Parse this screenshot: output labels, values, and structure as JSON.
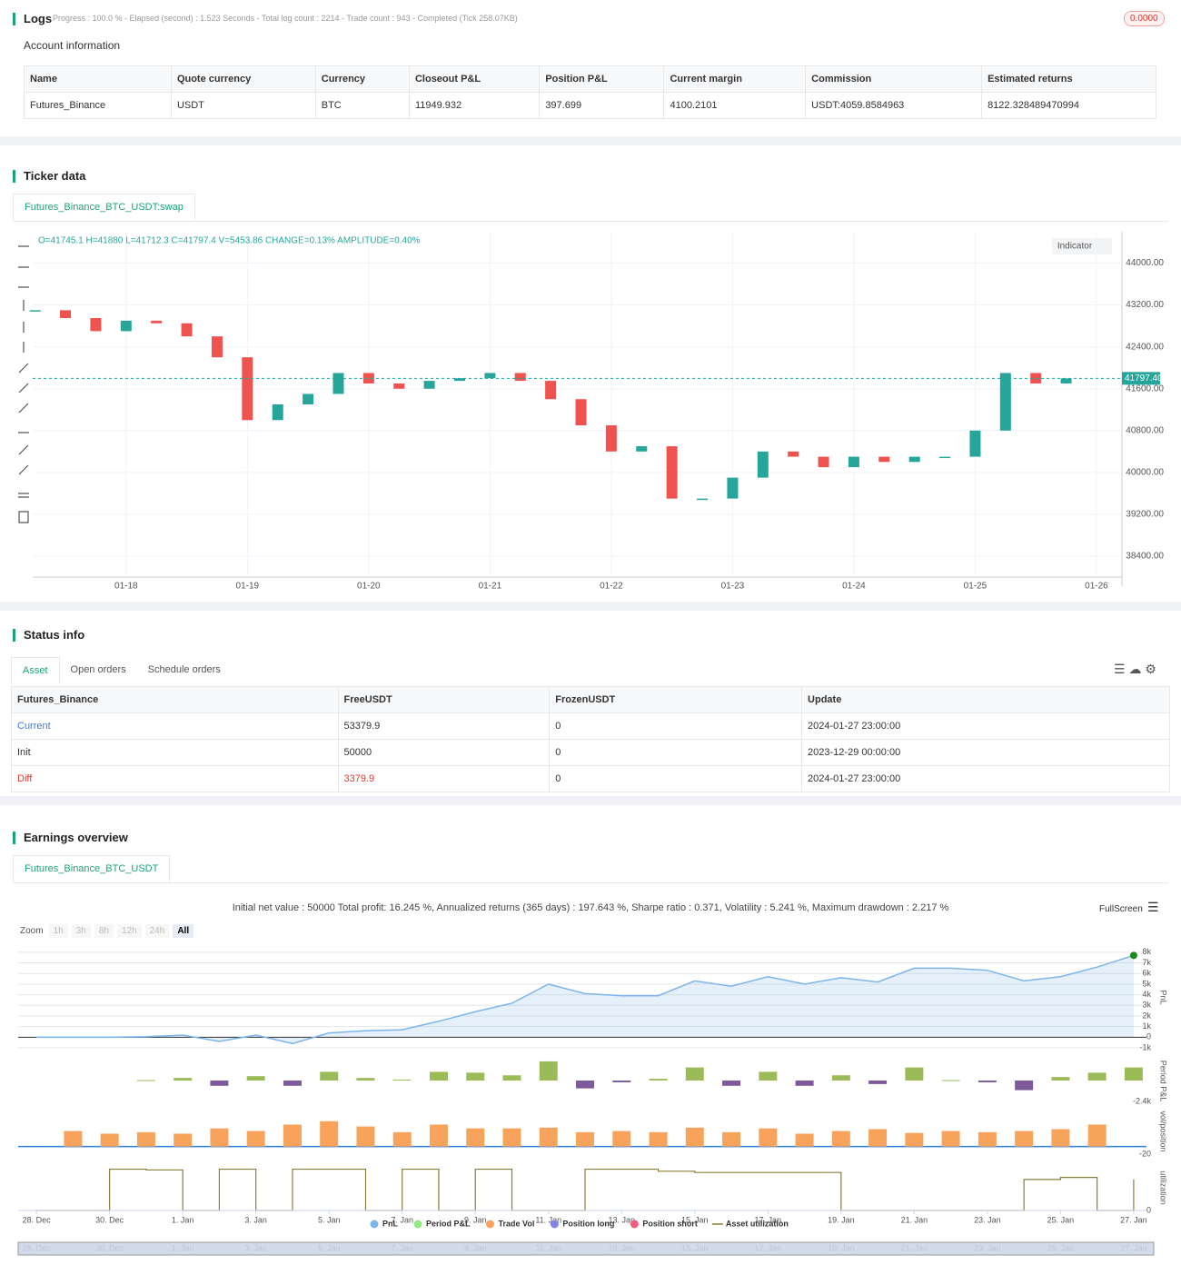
{
  "logs": {
    "title": "Logs",
    "progress": "Progress : 100.0 % - Elapsed (second) : 1.523  Seconds - Total log count : 2214 - Trade count : 943 - Completed (Tick 258.07KB)",
    "badge": "0.0000"
  },
  "account": {
    "title": "Account information",
    "headers": [
      "Name",
      "Quote currency",
      "Currency",
      "Closeout P&L",
      "Position P&L",
      "Current margin",
      "Commission",
      "Estimated returns"
    ],
    "rows": [
      [
        "Futures_Binance",
        "USDT",
        "BTC",
        "11949.932",
        "397.699",
        "4100.2101",
        "USDT:4059.8584963",
        "8122.328489470994"
      ]
    ]
  },
  "ticker": {
    "title": "Ticker data",
    "tab": "Futures_Binance_BTC_USDT:swap",
    "indicator": "Indicator",
    "chart_data": {
      "type": "candlestick",
      "info": "O=41745.1 H=41880 L=41712.3 C=41797.4 V=5453.86 CHANGE=0.13% AMPLITUDE=0.40%",
      "x": [
        17.25,
        17.5,
        17.75,
        18,
        18.25,
        18.5,
        18.75,
        19,
        19.25,
        19.5,
        19.75,
        20,
        20.25,
        20.5,
        20.75,
        21,
        21.25,
        21.5,
        21.75,
        22,
        22.25,
        22.5,
        22.75,
        23,
        23.25,
        23.5,
        23.75,
        24,
        24.25,
        24.5,
        24.75,
        25,
        25.25,
        25.5,
        25.75
      ],
      "values": [
        43100,
        42950,
        42700,
        42900,
        42850,
        42600,
        42200,
        41000,
        41300,
        41500,
        41900,
        41700,
        41600,
        41750,
        41800,
        41900,
        41750,
        41400,
        40900,
        40400,
        40500,
        39500,
        39500,
        39900,
        40400,
        40300,
        40100,
        40300,
        40200,
        40300,
        40300,
        40800,
        41900,
        41700,
        41797.4
      ],
      "up_color": "#26a69a",
      "down_color": "#ef5350",
      "last_price": {
        "value": 41797.4,
        "label": "41797.40"
      },
      "xlim": [
        17.23,
        26.21
      ],
      "xticks": [
        {
          "value": 18,
          "label": "01-18"
        },
        {
          "value": 19,
          "label": "01-19"
        },
        {
          "value": 20,
          "label": "01-20"
        },
        {
          "value": 21,
          "label": "01-21"
        },
        {
          "value": 22,
          "label": "01-22"
        },
        {
          "value": 23,
          "label": "01-23"
        },
        {
          "value": 24,
          "label": "01-24"
        },
        {
          "value": 25,
          "label": "01-25"
        },
        {
          "value": 26,
          "label": "01-26"
        }
      ],
      "ylim": [
        38000,
        44600
      ],
      "yticks": [
        {
          "value": 44000,
          "label": "44000.00"
        },
        {
          "value": 43200,
          "label": "43200.00"
        },
        {
          "value": 42400,
          "label": "42400.00"
        },
        {
          "value": 41600,
          "label": "41600.00"
        },
        {
          "value": 40800,
          "label": "40800.00"
        },
        {
          "value": 40000,
          "label": "40000.00"
        },
        {
          "value": 39200,
          "label": "39200.00"
        },
        {
          "value": 38400,
          "label": "38400.00"
        }
      ],
      "grid": true
    }
  },
  "status": {
    "title": "Status info",
    "tabs": [
      "Asset",
      "Open orders",
      "Schedule orders"
    ],
    "headers": [
      "Futures_Binance",
      "FreeUSDT",
      "FrozenUSDT",
      "Update"
    ],
    "rows": [
      [
        "Current",
        "53379.9",
        "0",
        "2024-01-27 23:00:00"
      ],
      [
        "Init",
        "50000",
        "0",
        "2023-12-29 00:00:00"
      ],
      [
        "Diff",
        "3379.9",
        "0",
        "2024-01-27 23:00:00"
      ]
    ]
  },
  "earnings": {
    "title": "Earnings overview",
    "tab": "Futures_Binance_BTC_USDT",
    "summary": "Initial net value : 50000 Total profit: 16.245 %, Annualized returns (365 days) : 197.643 %, Sharpe ratio : 0.371, Volatility : 5.241 %, Maximum drawdown : 2.217 %",
    "fullscreen": "FullScreen",
    "zoom": "Zoom",
    "zoom_buttons": [
      "1h",
      "3h",
      "8h",
      "12h",
      "24h",
      "All"
    ],
    "legend": [
      {
        "name": "PnL",
        "color": "#7cb5ec"
      },
      {
        "name": "Period P&L",
        "color": "#90ed7d"
      },
      {
        "name": "Trade Vol",
        "color": "#f7a35c"
      },
      {
        "name": "Position long",
        "color": "#8085e9"
      },
      {
        "name": "Position short",
        "color": "#f15c80"
      },
      {
        "name": "Asset utilization",
        "color": "#8b7d3a",
        "marker": "line"
      }
    ],
    "chart_data": [
      {
        "type": "area",
        "y_label": "PnL",
        "color": "#7cb5ec",
        "x": [
          0,
          1,
          2,
          3,
          4,
          5,
          6,
          7,
          8,
          9,
          10,
          11,
          12,
          13,
          14,
          15,
          16,
          17,
          18,
          19,
          20,
          21,
          22,
          23,
          24,
          25,
          26,
          27,
          28,
          29,
          30
        ],
        "values": [
          0,
          0,
          0,
          50,
          200,
          -400,
          200,
          -600,
          400,
          600,
          700,
          1500,
          2400,
          3200,
          5000,
          4100,
          3900,
          3900,
          5300,
          4800,
          5700,
          5000,
          5600,
          5200,
          6500,
          6500,
          6300,
          5300,
          5700,
          6600,
          7700
        ],
        "xlim": [
          -0.5,
          30.35
        ],
        "ylim": [
          -1000,
          8500
        ],
        "yticks": [
          {
            "value": 8000,
            "label": "8k"
          },
          {
            "value": 7000,
            "label": "7k"
          },
          {
            "value": 6000,
            "label": "6k"
          },
          {
            "value": 5000,
            "label": "5k"
          },
          {
            "value": 4000,
            "label": "4k"
          },
          {
            "value": 3000,
            "label": "3k"
          },
          {
            "value": 2000,
            "label": "2k"
          },
          {
            "value": 1000,
            "label": "1k"
          },
          0,
          {
            "value": -1000,
            "label": "-1k"
          }
        ],
        "grid": true
      },
      {
        "type": "bar",
        "y_label": "Period P&L",
        "pos_color": "#9bbb59",
        "neg_color": "#7e5a9b",
        "x": [
          3,
          4,
          5,
          6,
          7,
          8,
          9,
          10,
          11,
          12,
          13,
          14,
          15,
          16,
          17,
          18,
          19,
          20,
          21,
          22,
          23,
          24,
          25,
          26,
          27,
          28,
          29,
          30
        ],
        "values": [
          50,
          300,
          -600,
          500,
          -600,
          1000,
          300,
          100,
          1000,
          900,
          600,
          2200,
          -900,
          -200,
          200,
          1500,
          -600,
          1000,
          -600,
          600,
          -400,
          1500,
          50,
          -200,
          -1100,
          400,
          900,
          1500
        ],
        "xlim": [
          -0.5,
          30.35
        ],
        "ylim": [
          -2600,
          2500
        ],
        "yticks": [
          {
            "value": -2400,
            "label": "-2.4k"
          }
        ]
      },
      {
        "type": "bar",
        "y_label": "vol/position",
        "pos_color": "#f7a35c",
        "neg_color": "#f7a35c",
        "x": [
          1,
          2,
          3,
          4,
          5,
          6,
          7,
          8,
          9,
          10,
          11,
          12,
          13,
          14,
          15,
          16,
          17,
          18,
          19,
          20,
          21,
          22,
          23,
          24,
          25,
          26,
          27,
          28,
          29
        ],
        "values": [
          41,
          34,
          38,
          34,
          48,
          41,
          58,
          67,
          53,
          38,
          58,
          48,
          48,
          50,
          38,
          41,
          38,
          50,
          38,
          48,
          34,
          41,
          46,
          36,
          41,
          38,
          41,
          46,
          58
        ],
        "xlim": [
          -0.5,
          30.35
        ],
        "ylim": [
          -20,
          100
        ],
        "yticks": [
          -20
        ]
      },
      {
        "type": "step",
        "y_label": "utilization",
        "color": "#8b7d3a",
        "x": [
          0,
          2,
          3,
          4,
          5,
          6,
          7,
          9,
          10,
          11,
          12,
          13,
          15,
          17,
          18,
          22,
          27,
          28,
          29,
          30
        ],
        "values": [
          0,
          1,
          0.98,
          0,
          1,
          0,
          1,
          0,
          1,
          0,
          1,
          0,
          1,
          0.95,
          0.92,
          0,
          0.75,
          0.8,
          0,
          0.75
        ],
        "xlim": [
          -0.5,
          30.35
        ],
        "ylim": [
          0,
          1.1
        ],
        "yticks": [
          0
        ],
        "xticks": [
          {
            "value": 0,
            "label": "28. Dec"
          },
          {
            "value": 2,
            "label": "30. Dec"
          },
          {
            "value": 4,
            "label": "1. Jan"
          },
          {
            "value": 6,
            "label": "3. Jan"
          },
          {
            "value": 8,
            "label": "5. Jan"
          },
          {
            "value": 10,
            "label": "7. Jan"
          },
          {
            "value": 12,
            "label": "9. Jan"
          },
          {
            "value": 14,
            "label": "11. Jan"
          },
          {
            "value": 16,
            "label": "13. Jan"
          },
          {
            "value": 18,
            "label": "15. Jan"
          },
          {
            "value": 20,
            "label": "17. Jan"
          },
          {
            "value": 22,
            "label": "19. Jan"
          },
          {
            "value": 24,
            "label": "21. Jan"
          },
          {
            "value": 26,
            "label": "23. Jan"
          },
          {
            "value": 28,
            "label": "25. Jan"
          },
          {
            "value": 30,
            "label": "27. Jan"
          }
        ]
      }
    ]
  }
}
